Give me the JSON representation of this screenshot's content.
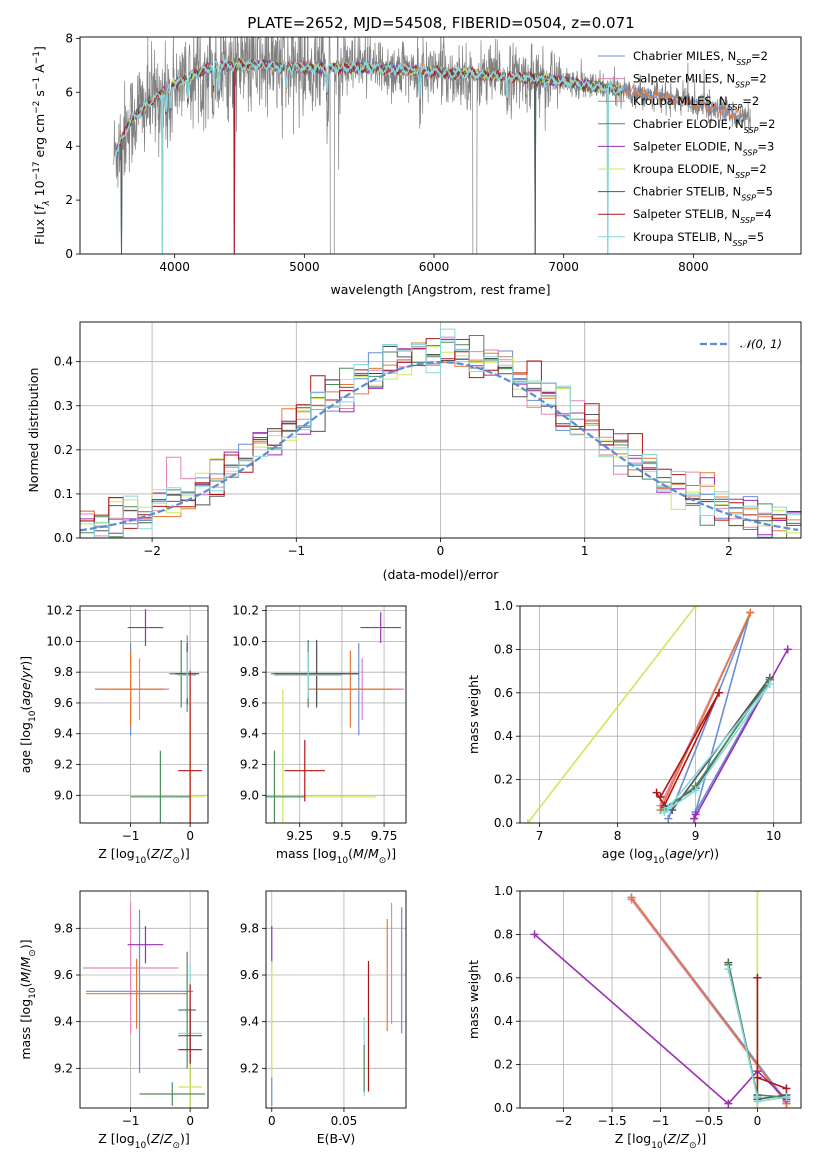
{
  "title": "PLATE=2652, MJD=54508, FIBERID=0504, z=0.071",
  "models": [
    {
      "name": "Chabrier MILES",
      "nssp": "2",
      "color": "#6a8ed8"
    },
    {
      "name": "Salpeter MILES",
      "nssp": "2",
      "color": "#e386b6"
    },
    {
      "name": "Kroupa MILES",
      "nssp": "2",
      "color": "#e8783a"
    },
    {
      "name": "Chabrier ELODIE",
      "nssp": "2",
      "color": "#4a8e5c"
    },
    {
      "name": "Salpeter ELODIE",
      "nssp": "3",
      "color": "#9c2fb3"
    },
    {
      "name": "Kroupa ELODIE",
      "nssp": "2",
      "color": "#cde85c"
    },
    {
      "name": "Chabrier STELIB",
      "nssp": "5",
      "color": "#555555"
    },
    {
      "name": "Salpeter STELIB",
      "nssp": "4",
      "color": "#b01515"
    },
    {
      "name": "Kroupa STELIB",
      "nssp": "5",
      "color": "#86d8de"
    }
  ],
  "chart_data": [
    {
      "id": "spectrum",
      "type": "line",
      "xlabel": "wavelength [Angstrom, rest frame]",
      "ylabel": "Flux [f_λ 10^-17 erg cm^-2 s^-1 A^-1]",
      "xlim": [
        3270,
        8830
      ],
      "ylim": [
        0,
        8.05
      ],
      "xticks": [
        4000,
        5000,
        6000,
        7000,
        8000
      ],
      "yticks": [
        0,
        2,
        4,
        6,
        8
      ],
      "legend": "upper-right",
      "data_color": "#808080",
      "data_range": [
        3530,
        8440
      ],
      "continuum": [
        [
          3530,
          3.6
        ],
        [
          3650,
          4.9
        ],
        [
          3800,
          5.6
        ],
        [
          4000,
          6.3
        ],
        [
          4300,
          7.0
        ],
        [
          4700,
          7.0
        ],
        [
          5000,
          6.9
        ],
        [
          5500,
          6.9
        ],
        [
          6000,
          6.75
        ],
        [
          6500,
          6.6
        ],
        [
          7000,
          6.4
        ],
        [
          7400,
          6.1
        ],
        [
          7700,
          5.9
        ],
        [
          8000,
          5.6
        ],
        [
          8440,
          5.0
        ]
      ],
      "absorption_lines": [
        3933,
        3968,
        4102,
        4300,
        4340,
        4861,
        5175,
        5890,
        6563
      ],
      "emission_lines": [
        3727,
        4861,
        5007,
        6563,
        6583
      ],
      "mask_gaps": [
        [
          5200,
          5230
        ],
        [
          6300,
          6330
        ]
      ],
      "model_dropouts": [
        3590,
        3905,
        4460,
        6780,
        7340
      ]
    },
    {
      "id": "residuals",
      "type": "histogram",
      "xlabel": "(data-model)/error",
      "ylabel": "Normed distribution",
      "xlim": [
        -2.5,
        2.5
      ],
      "ylim": [
        0,
        0.49
      ],
      "xticks": [
        -2,
        -1,
        0,
        1,
        2
      ],
      "yticks": [
        0.0,
        0.1,
        0.2,
        0.3,
        0.4
      ],
      "grid": true,
      "legend": "upper-right",
      "normal_label": "𝒩(0, 1)",
      "normal_color": "#5b8bd4",
      "bin_width": 0.1
    },
    {
      "id": "age-vs-Z",
      "type": "errorbar",
      "xlabel": "Z [log10(Z/Z⊙)]",
      "ylabel": "age [log10(age/yr)]",
      "xlim": [
        -1.85,
        0.3
      ],
      "ylim": [
        8.82,
        10.23
      ],
      "xticks": [
        -1,
        0
      ],
      "yticks": [
        9.0,
        9.2,
        9.4,
        9.6,
        9.8,
        10.0,
        10.2
      ],
      "grid": true,
      "points": [
        {
          "m": 0,
          "x": -1.0,
          "y": 9.69,
          "xerr": 0.6,
          "yerr": 0.3
        },
        {
          "m": 1,
          "x": -0.85,
          "y": 9.69,
          "xerr": 0.5,
          "yerr": 0.2
        },
        {
          "m": 2,
          "x": -1.0,
          "y": 9.69,
          "xerr": 0.55,
          "yerr": 0.25
        },
        {
          "m": 4,
          "x": -0.75,
          "y": 10.09,
          "xerr": 0.3,
          "yerr": 0.12
        },
        {
          "m": 0,
          "x": -0.05,
          "y": 9.79,
          "xerr": 0.15,
          "yerr": 0.25
        },
        {
          "m": 3,
          "x": -0.15,
          "y": 9.79,
          "xerr": 0.2,
          "yerr": 0.22
        },
        {
          "m": 6,
          "x": -0.05,
          "y": 9.79,
          "xerr": 0.2,
          "yerr": 0.2
        },
        {
          "m": 8,
          "x": -0.05,
          "y": 9.78,
          "xerr": 0.15,
          "yerr": 0.15
        },
        {
          "m": 5,
          "x": 0.0,
          "y": 8.99,
          "xerr": 0.25,
          "yerr": 0.7
        },
        {
          "m": 3,
          "x": -0.5,
          "y": 8.99,
          "xerr": 0.5,
          "yerr": 0.3
        },
        {
          "m": 7,
          "x": 0.0,
          "y": 9.16,
          "xerr": 0.2,
          "yerr": 0.65
        }
      ]
    },
    {
      "id": "age-vs-mass",
      "type": "errorbar",
      "xlabel": "mass [log10(M/M⊙)]",
      "ylabel": "",
      "xlim": [
        9.05,
        9.88
      ],
      "ylim": [
        8.82,
        10.23
      ],
      "xticks": [
        9.25,
        9.5,
        9.75
      ],
      "yticks": [
        9.0,
        9.2,
        9.4,
        9.6,
        9.8,
        10.0,
        10.2
      ],
      "grid": true,
      "points": [
        {
          "m": 0,
          "x": 9.6,
          "y": 9.69,
          "xerr": 0.25,
          "yerr": 0.3
        },
        {
          "m": 1,
          "x": 9.62,
          "y": 9.69,
          "xerr": 0.25,
          "yerr": 0.2
        },
        {
          "m": 2,
          "x": 9.55,
          "y": 9.69,
          "xerr": 0.25,
          "yerr": 0.25
        },
        {
          "m": 4,
          "x": 9.73,
          "y": 10.09,
          "xerr": 0.12,
          "yerr": 0.1
        },
        {
          "m": 0,
          "x": 9.35,
          "y": 9.79,
          "xerr": 0.25,
          "yerr": 0.2
        },
        {
          "m": 3,
          "x": 9.3,
          "y": 9.79,
          "xerr": 0.22,
          "yerr": 0.22
        },
        {
          "m": 6,
          "x": 9.35,
          "y": 9.79,
          "xerr": 0.25,
          "yerr": 0.22
        },
        {
          "m": 8,
          "x": 9.3,
          "y": 9.78,
          "xerr": 0.2,
          "yerr": 0.15
        },
        {
          "m": 5,
          "x": 9.15,
          "y": 8.99,
          "xerr": 0.55,
          "yerr": 0.7
        },
        {
          "m": 3,
          "x": 9.1,
          "y": 8.99,
          "xerr": 0.18,
          "yerr": 0.3
        },
        {
          "m": 7,
          "x": 9.28,
          "y": 9.16,
          "xerr": 0.12,
          "yerr": 0.2
        }
      ]
    },
    {
      "id": "weight-vs-age",
      "type": "line",
      "xlabel": "age (log10(age/yr))",
      "ylabel": "mass weight",
      "xlim": [
        6.75,
        10.35
      ],
      "ylim": [
        0,
        1.0
      ],
      "xticks": [
        7,
        8,
        9,
        10
      ],
      "yticks": [
        0.0,
        0.2,
        0.4,
        0.6,
        0.8,
        1.0
      ],
      "grid": true,
      "series": [
        {
          "m": 5,
          "x": [
            6.85,
            9.0
          ],
          "y": [
            0.0,
            1.0
          ]
        },
        {
          "m": 0,
          "x": [
            8.65,
            9.7,
            9.0,
            9.95
          ],
          "y": [
            0.02,
            0.97,
            0.05,
            0.66
          ]
        },
        {
          "m": 1,
          "x": [
            8.55,
            9.7
          ],
          "y": [
            0.08,
            0.97
          ]
        },
        {
          "m": 2,
          "x": [
            8.55,
            9.7
          ],
          "y": [
            0.06,
            0.97
          ]
        },
        {
          "m": 4,
          "x": [
            9.0,
            8.98,
            10.18
          ],
          "y": [
            0.04,
            0.02,
            0.8
          ]
        },
        {
          "m": 7,
          "x": [
            8.5,
            8.6,
            9.3,
            8.55
          ],
          "y": [
            0.14,
            0.08,
            0.6,
            0.12
          ]
        },
        {
          "m": 6,
          "x": [
            8.6,
            9.0,
            9.95,
            8.7
          ],
          "y": [
            0.07,
            0.16,
            0.67,
            0.06
          ]
        },
        {
          "m": 3,
          "x": [
            8.6,
            9.0,
            9.95
          ],
          "y": [
            0.06,
            0.17,
            0.66
          ]
        },
        {
          "m": 8,
          "x": [
            8.6,
            9.0,
            9.95,
            8.65
          ],
          "y": [
            0.05,
            0.15,
            0.64,
            0.07
          ]
        }
      ]
    },
    {
      "id": "mass-vs-Z",
      "type": "errorbar",
      "xlabel": "Z [log10(Z/Z⊙)]",
      "ylabel": "mass [log10(M/M⊙)]",
      "xlim": [
        -1.85,
        0.3
      ],
      "ylim": [
        9.03,
        9.96
      ],
      "xticks": [
        -1,
        0
      ],
      "yticks": [
        9.2,
        9.4,
        9.6,
        9.8
      ],
      "grid": true,
      "points": [
        {
          "m": 0,
          "x": -0.85,
          "y": 9.53,
          "xerr": 0.9,
          "yerr": 0.35
        },
        {
          "m": 1,
          "x": -1.0,
          "y": 9.63,
          "xerr": 0.8,
          "yerr": 0.28
        },
        {
          "m": 2,
          "x": -0.9,
          "y": 9.52,
          "xerr": 0.85,
          "yerr": 0.15
        },
        {
          "m": 4,
          "x": -0.75,
          "y": 9.73,
          "xerr": 0.3,
          "yerr": 0.08
        },
        {
          "m": 3,
          "x": -0.05,
          "y": 9.45,
          "xerr": 0.15,
          "yerr": 0.25
        },
        {
          "m": 8,
          "x": 0.0,
          "y": 9.35,
          "xerr": 0.2,
          "yerr": 0.3
        },
        {
          "m": 6,
          "x": 0.0,
          "y": 9.34,
          "xerr": 0.2,
          "yerr": 0.12
        },
        {
          "m": 7,
          "x": 0.0,
          "y": 9.28,
          "xerr": 0.2,
          "yerr": 0.28
        },
        {
          "m": 5,
          "x": 0.0,
          "y": 9.12,
          "xerr": 0.2,
          "yerr": 0.1
        },
        {
          "m": 3,
          "x": -0.3,
          "y": 9.09,
          "xerr": 0.55,
          "yerr": 0.05
        }
      ]
    },
    {
      "id": "mass-vs-EBV",
      "type": "errorbar",
      "xlabel": "E(B-V)",
      "ylabel": "",
      "xlim": [
        -0.004,
        0.093
      ],
      "ylim": [
        9.03,
        9.96
      ],
      "xticks": [
        0.0,
        0.05
      ],
      "yticks": [
        9.2,
        9.4,
        9.6,
        9.8
      ],
      "grid": true,
      "points": [
        {
          "m": 4,
          "x": 0.0,
          "y": 9.73,
          "xerr": 0,
          "yerr": 0.08
        },
        {
          "m": 5,
          "x": 0.0,
          "y": 9.4,
          "xerr": 0,
          "yerr": 0.26
        },
        {
          "m": 0,
          "x": 0.0,
          "y": 9.1,
          "xerr": 0,
          "yerr": 0.06
        },
        {
          "m": 8,
          "x": 0.064,
          "y": 9.25,
          "xerr": 0,
          "yerr": 0.17
        },
        {
          "m": 7,
          "x": 0.067,
          "y": 9.38,
          "xerr": 0,
          "yerr": 0.28
        },
        {
          "m": 3,
          "x": 0.064,
          "y": 9.2,
          "xerr": 0,
          "yerr": 0.1
        },
        {
          "m": 2,
          "x": 0.08,
          "y": 9.6,
          "xerr": 0,
          "yerr": 0.24
        },
        {
          "m": 1,
          "x": 0.083,
          "y": 9.65,
          "xerr": 0,
          "yerr": 0.26
        },
        {
          "m": 0,
          "x": 0.09,
          "y": 9.62,
          "xerr": 0,
          "yerr": 0.27
        }
      ]
    },
    {
      "id": "weight-vs-Z",
      "type": "line",
      "xlabel": "Z [log10(Z/Z⊙)]",
      "ylabel": "mass weight",
      "xlim": [
        -2.45,
        0.45
      ],
      "ylim": [
        0,
        1.0
      ],
      "xticks": [
        -2.0,
        -1.5,
        -1.0,
        -0.5,
        0.0
      ],
      "yticks": [
        0.0,
        0.2,
        0.4,
        0.6,
        0.8,
        1.0
      ],
      "grid": true,
      "series": [
        {
          "m": 5,
          "x": [
            0.0,
            0.0
          ],
          "y": [
            0.0,
            1.0
          ]
        },
        {
          "m": 0,
          "x": [
            -1.3,
            0.3
          ],
          "y": [
            0.97,
            0.03
          ]
        },
        {
          "m": 1,
          "x": [
            -1.3,
            0.3
          ],
          "y": [
            0.96,
            0.02
          ]
        },
        {
          "m": 2,
          "x": [
            -1.3,
            0.3
          ],
          "y": [
            0.97,
            0.02
          ]
        },
        {
          "m": 4,
          "x": [
            -2.3,
            -0.3,
            0.0,
            0.3
          ],
          "y": [
            0.8,
            0.02,
            0.17,
            0.04
          ]
        },
        {
          "m": 7,
          "x": [
            0.0,
            0.0,
            0.0,
            0.3
          ],
          "y": [
            0.6,
            0.06,
            0.14,
            0.09
          ]
        },
        {
          "m": 6,
          "x": [
            -0.3,
            0.0,
            0.0,
            0.3
          ],
          "y": [
            0.67,
            0.05,
            0.04,
            0.06
          ]
        },
        {
          "m": 3,
          "x": [
            -0.3,
            0.0,
            0.3
          ],
          "y": [
            0.66,
            0.06,
            0.05
          ]
        },
        {
          "m": 8,
          "x": [
            -0.3,
            0.0,
            0.0,
            0.3
          ],
          "y": [
            0.64,
            0.05,
            0.03,
            0.05
          ]
        }
      ]
    }
  ]
}
